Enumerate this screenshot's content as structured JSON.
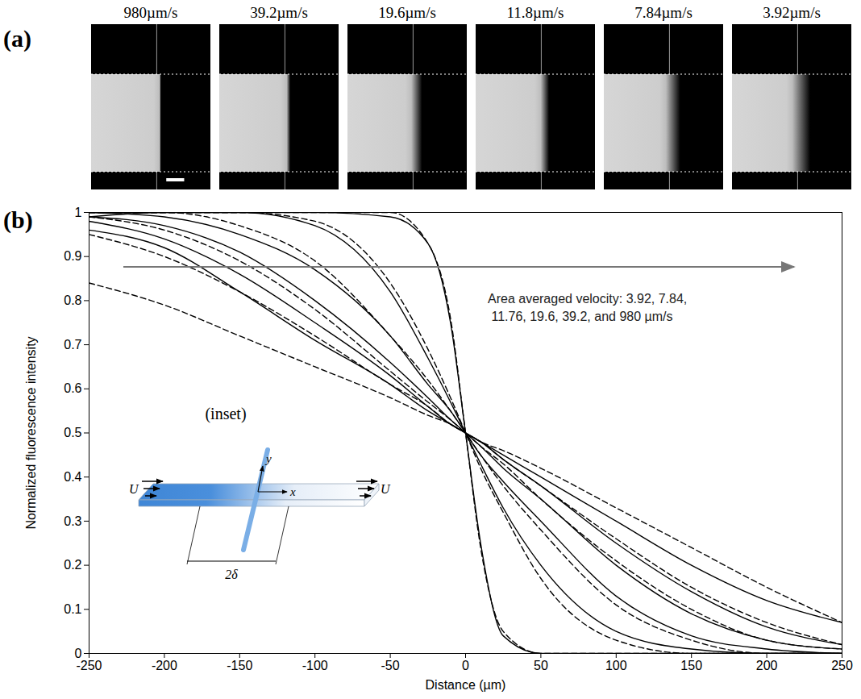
{
  "panel_a": {
    "label": "(a)",
    "image_titles": [
      "980µm/s",
      "39.2µm/s",
      "19.6µm/s",
      "11.8µm/s",
      "7.84µm/s",
      "3.92µm/s"
    ]
  },
  "chart_data": {
    "panel_label": "(b)",
    "type": "line",
    "xlabel": "Distance (µm)",
    "ylabel": "Normalized fluorescence intensity",
    "x": [
      -250,
      -200,
      -150,
      -100,
      -50,
      -25,
      -10,
      0,
      10,
      25,
      50,
      100,
      150,
      200,
      250
    ],
    "xlim": [
      -250,
      250
    ],
    "xticks": [
      -250,
      -200,
      -150,
      -100,
      -50,
      0,
      50,
      100,
      150,
      200,
      250
    ],
    "ylim": [
      0,
      1
    ],
    "yticks": [
      0,
      0.1,
      0.2,
      0.3,
      0.4,
      0.5,
      0.6,
      0.7,
      0.8,
      0.9,
      1
    ],
    "series": [
      {
        "line_style": "solid",
        "color": "#000000",
        "values": [
          0.99,
          1.0,
          1.0,
          1.0,
          0.99,
          0.93,
          0.75,
          0.5,
          0.25,
          0.04,
          0.0,
          0.0,
          0.0,
          0.0,
          0.0
        ]
      },
      {
        "line_style": "dashed",
        "color": "#000000",
        "values": [
          1.0,
          1.0,
          1.0,
          1.0,
          1.0,
          0.93,
          0.76,
          0.5,
          0.24,
          0.05,
          0.0,
          0.0,
          0.0,
          0.0,
          0.0
        ]
      },
      {
        "line_style": "solid",
        "color": "#000000",
        "values": [
          1.0,
          1.0,
          1.0,
          0.97,
          0.82,
          0.67,
          0.57,
          0.5,
          0.43,
          0.33,
          0.2,
          0.05,
          0.01,
          0.0,
          0.0
        ]
      },
      {
        "line_style": "dashed",
        "color": "#000000",
        "values": [
          1.0,
          1.0,
          1.0,
          0.98,
          0.84,
          0.69,
          0.58,
          0.5,
          0.42,
          0.32,
          0.17,
          0.03,
          0.0,
          0.0,
          0.0
        ]
      },
      {
        "line_style": "solid",
        "color": "#000000",
        "values": [
          1.0,
          0.99,
          0.95,
          0.87,
          0.72,
          0.61,
          0.55,
          0.5,
          0.45,
          0.39,
          0.3,
          0.13,
          0.04,
          0.01,
          0.0
        ]
      },
      {
        "line_style": "dashed",
        "color": "#000000",
        "values": [
          1.0,
          1.0,
          0.97,
          0.89,
          0.72,
          0.62,
          0.55,
          0.5,
          0.45,
          0.38,
          0.28,
          0.11,
          0.03,
          0.0,
          0.0
        ]
      },
      {
        "line_style": "solid",
        "color": "#000000",
        "values": [
          0.99,
          0.97,
          0.91,
          0.8,
          0.66,
          0.58,
          0.53,
          0.5,
          0.47,
          0.42,
          0.35,
          0.2,
          0.09,
          0.03,
          0.01
        ]
      },
      {
        "line_style": "dashed",
        "color": "#000000",
        "values": [
          0.99,
          0.96,
          0.89,
          0.78,
          0.64,
          0.57,
          0.53,
          0.5,
          0.47,
          0.43,
          0.35,
          0.21,
          0.1,
          0.03,
          0.01
        ]
      },
      {
        "line_style": "solid",
        "color": "#000000",
        "values": [
          0.98,
          0.94,
          0.86,
          0.75,
          0.63,
          0.56,
          0.52,
          0.5,
          0.48,
          0.44,
          0.38,
          0.25,
          0.14,
          0.06,
          0.02
        ]
      },
      {
        "line_style": "dashed",
        "color": "#000000",
        "values": [
          0.95,
          0.9,
          0.82,
          0.72,
          0.61,
          0.56,
          0.52,
          0.5,
          0.48,
          0.44,
          0.38,
          0.26,
          0.15,
          0.07,
          0.02
        ]
      },
      {
        "line_style": "solid",
        "color": "#000000",
        "values": [
          0.96,
          0.92,
          0.82,
          0.71,
          0.61,
          0.55,
          0.52,
          0.5,
          0.48,
          0.45,
          0.4,
          0.3,
          0.2,
          0.12,
          0.07
        ]
      },
      {
        "line_style": "dashed",
        "color": "#000000",
        "values": [
          0.84,
          0.79,
          0.72,
          0.65,
          0.58,
          0.54,
          0.52,
          0.5,
          0.48,
          0.46,
          0.42,
          0.33,
          0.24,
          0.15,
          0.07
        ]
      }
    ],
    "annotation": [
      "Area averaged velocity: 3.92, 7.84,",
      " 11.76, 19.6, 39.2, and 980 µm/s"
    ],
    "inset": {
      "title": "(inset)",
      "flow_left": "U",
      "flow_right": "U",
      "x_axis": "x",
      "y_axis": "y",
      "width": "2δ"
    }
  }
}
